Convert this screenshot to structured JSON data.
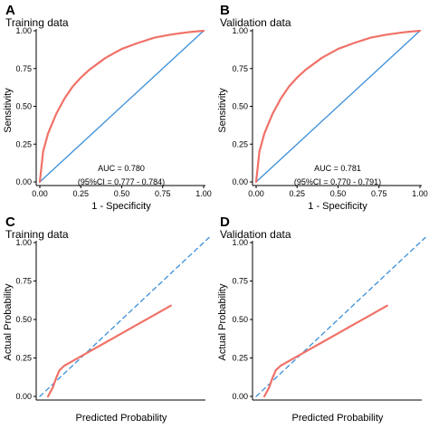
{
  "colors": {
    "model_curve": "#f07167",
    "reference_line": "#3b8fd9",
    "axis": "#000000"
  },
  "chart_data": [
    {
      "panel_id": "A",
      "type": "line",
      "subtitle": "Training data",
      "xlabel": "1 - Specificity",
      "ylabel": "Sensitivity",
      "xlim": [
        0,
        1
      ],
      "ylim": [
        0,
        1
      ],
      "xticks": [
        "0.00",
        "0.25",
        "0.50",
        "0.75",
        "1.00"
      ],
      "yticks": [
        "0.00",
        "0.25",
        "0.50",
        "0.75",
        "1.00"
      ],
      "grid": false,
      "annotations": [
        "AUC = 0.780",
        "(95%CI = 0.777 - 0.784)"
      ],
      "series": [
        {
          "role": "model",
          "style": "solid",
          "x": [
            0,
            0.02,
            0.05,
            0.1,
            0.15,
            0.2,
            0.25,
            0.3,
            0.4,
            0.5,
            0.6,
            0.7,
            0.8,
            0.9,
            0.95,
            1.0
          ],
          "y": [
            0,
            0.2,
            0.32,
            0.45,
            0.55,
            0.63,
            0.69,
            0.74,
            0.82,
            0.88,
            0.92,
            0.955,
            0.975,
            0.99,
            0.995,
            1.0
          ]
        },
        {
          "role": "reference",
          "style": "solid",
          "x": [
            0,
            1
          ],
          "y": [
            0,
            1
          ]
        }
      ]
    },
    {
      "panel_id": "B",
      "type": "line",
      "subtitle": "Validation data",
      "xlabel": "1 - Specificity",
      "ylabel": "Sensitivity",
      "xlim": [
        0,
        1
      ],
      "ylim": [
        0,
        1
      ],
      "xticks": [
        "0.00",
        "0.25",
        "0.50",
        "0.75",
        "1.00"
      ],
      "yticks": [
        "0.00",
        "0.25",
        "0.50",
        "0.75",
        "1.00"
      ],
      "grid": false,
      "annotations": [
        "AUC = 0.781",
        "(95%CI = 0.770 - 0.791)"
      ],
      "series": [
        {
          "role": "model",
          "style": "solid",
          "x": [
            0,
            0.02,
            0.05,
            0.1,
            0.15,
            0.2,
            0.25,
            0.3,
            0.4,
            0.5,
            0.6,
            0.7,
            0.8,
            0.9,
            0.95,
            1.0
          ],
          "y": [
            0,
            0.2,
            0.32,
            0.45,
            0.55,
            0.63,
            0.69,
            0.74,
            0.82,
            0.88,
            0.92,
            0.955,
            0.975,
            0.99,
            0.995,
            1.0
          ]
        },
        {
          "role": "reference",
          "style": "solid",
          "x": [
            0,
            1
          ],
          "y": [
            0,
            1
          ]
        }
      ]
    },
    {
      "panel_id": "C",
      "type": "line",
      "subtitle": "Training data",
      "xlabel": "Predicted Probability",
      "ylabel": "Actual Probability",
      "xlim": [
        0,
        1
      ],
      "ylim": [
        0,
        1
      ],
      "xticks": [],
      "yticks": [
        "0.00",
        "0.25",
        "0.50",
        "0.75",
        "1.00"
      ],
      "grid": false,
      "annotations": [],
      "series": [
        {
          "role": "model",
          "style": "solid",
          "x": [
            0.05,
            0.08,
            0.1,
            0.12,
            0.15,
            0.2,
            0.3,
            0.4,
            0.5,
            0.6,
            0.7,
            0.8
          ],
          "y": [
            0.0,
            0.06,
            0.12,
            0.17,
            0.2,
            0.23,
            0.29,
            0.35,
            0.41,
            0.47,
            0.53,
            0.59
          ]
        },
        {
          "role": "reference",
          "style": "dashed",
          "x": [
            0,
            1.05
          ],
          "y": [
            0,
            1.05
          ]
        }
      ]
    },
    {
      "panel_id": "D",
      "type": "line",
      "subtitle": "Validation data",
      "xlabel": "Predicted Probability",
      "ylabel": "Actual Probability",
      "xlim": [
        0,
        1
      ],
      "ylim": [
        0,
        1
      ],
      "xticks": [],
      "yticks": [
        "0.00",
        "0.25",
        "0.50",
        "0.75",
        "1.00"
      ],
      "grid": false,
      "annotations": [],
      "series": [
        {
          "role": "model",
          "style": "solid",
          "x": [
            0.05,
            0.08,
            0.1,
            0.12,
            0.15,
            0.2,
            0.3,
            0.4,
            0.5,
            0.6,
            0.7,
            0.8
          ],
          "y": [
            0.0,
            0.06,
            0.12,
            0.17,
            0.2,
            0.23,
            0.29,
            0.35,
            0.41,
            0.47,
            0.53,
            0.59
          ]
        },
        {
          "role": "reference",
          "style": "dashed",
          "x": [
            0,
            1.05
          ],
          "y": [
            0,
            1.05
          ]
        }
      ]
    }
  ]
}
